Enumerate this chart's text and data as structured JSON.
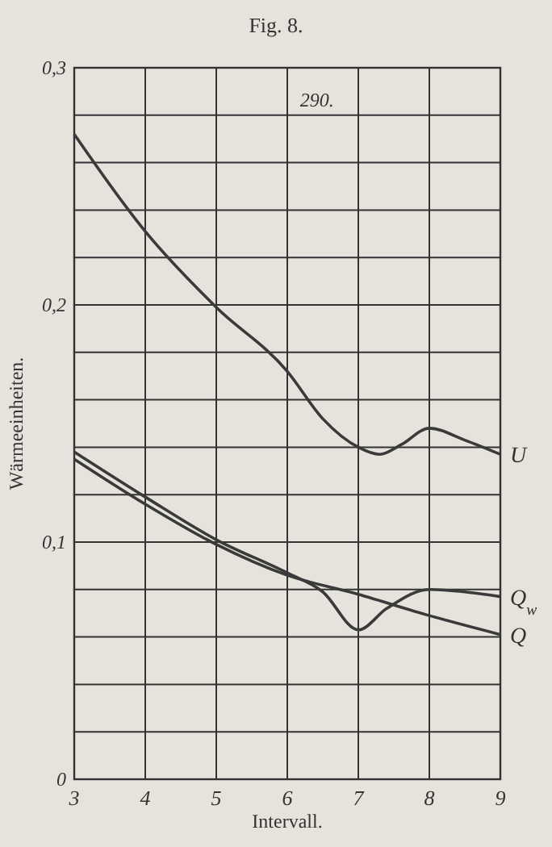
{
  "chart_data": {
    "type": "line",
    "title": "Fig. 8.",
    "xlabel": "Intervall.",
    "ylabel": "Wärmeeinheiten.",
    "annotations": [
      "290."
    ],
    "xlim": [
      3,
      9
    ],
    "xticks": [
      3,
      4,
      5,
      6,
      7,
      8,
      9
    ],
    "ylim": [
      0,
      0.3
    ],
    "yticks": [
      {
        "value": 0,
        "label": "0"
      },
      {
        "value": 0.02,
        "label": null
      },
      {
        "value": 0.04,
        "label": null
      },
      {
        "value": 0.06,
        "label": null
      },
      {
        "value": 0.08,
        "label": null
      },
      {
        "value": 0.1,
        "label": "0,1"
      },
      {
        "value": 0.12,
        "label": null
      },
      {
        "value": 0.14,
        "label": null
      },
      {
        "value": 0.16,
        "label": null
      },
      {
        "value": 0.18,
        "label": null
      },
      {
        "value": 0.2,
        "label": "0,2"
      },
      {
        "value": 0.22,
        "label": null
      },
      {
        "value": 0.24,
        "label": null
      },
      {
        "value": 0.26,
        "label": null
      },
      {
        "value": 0.28,
        "label": null
      },
      {
        "value": 0.3,
        "label": "0,3"
      }
    ],
    "grid": true,
    "legend": false,
    "marker": "none",
    "line_style": "solid",
    "series": [
      {
        "name": "U",
        "color": "#3a3a3a",
        "x": [
          3,
          4,
          5,
          6,
          6.5,
          7,
          7.3,
          7.6,
          8,
          8.5,
          9
        ],
        "values": [
          0.272,
          0.231,
          0.199,
          0.172,
          0.152,
          0.14,
          0.137,
          0.141,
          0.148,
          0.143,
          0.137
        ]
      },
      {
        "name": "Q$_{w}$",
        "color": "#3a3a3a",
        "x": [
          3,
          4,
          5,
          6,
          6.5,
          7,
          7.4,
          8,
          8.5,
          9
        ],
        "values": [
          0.138,
          0.119,
          0.101,
          0.087,
          0.079,
          0.063,
          0.072,
          0.08,
          0.079,
          0.077
        ]
      },
      {
        "name": "Q",
        "color": "#3a3a3a",
        "x": [
          3,
          4,
          5,
          6,
          7,
          8,
          9
        ],
        "values": [
          0.135,
          0.116,
          0.099,
          0.086,
          0.078,
          0.069,
          0.061
        ]
      }
    ]
  }
}
